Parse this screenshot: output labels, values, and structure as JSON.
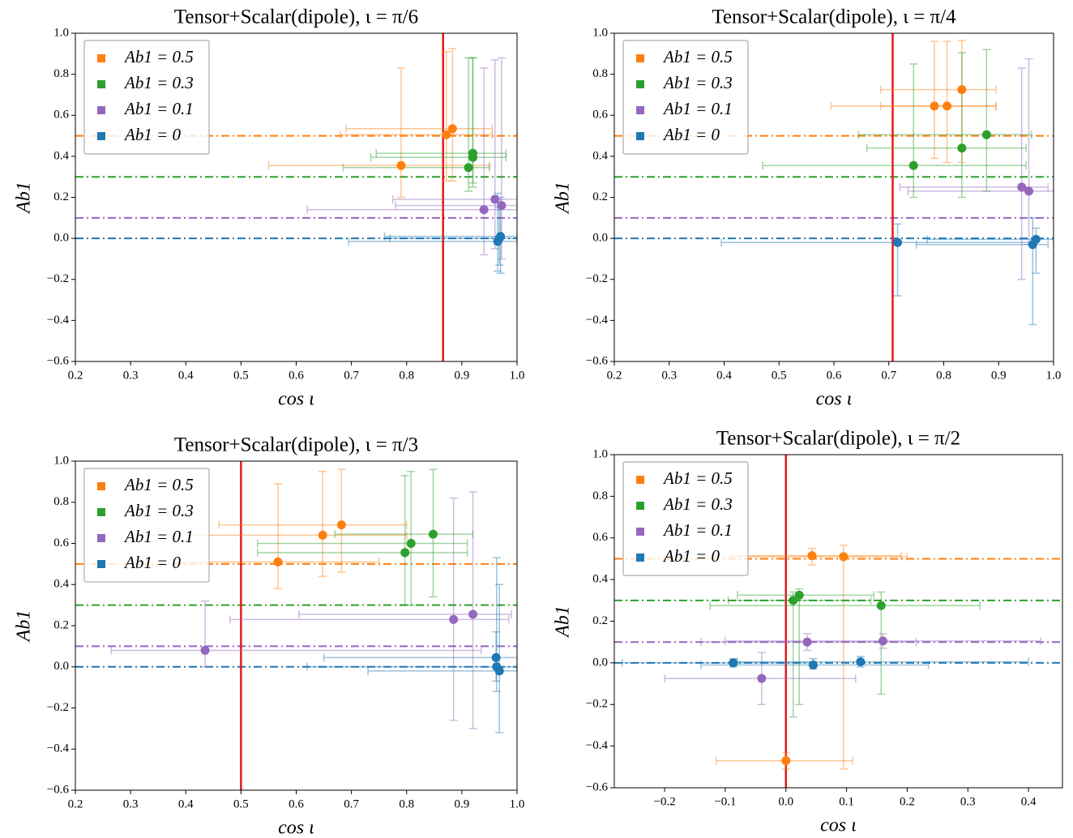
{
  "chart_data": [
    {
      "type": "errorbar",
      "title": "Tensor+Scalar(dipole), ι = π/6",
      "xlabel": "cos ι",
      "ylabel": "Ab1",
      "xlim": [
        0.2,
        1.0
      ],
      "ylim": [
        -0.6,
        1.0
      ],
      "xticks": [
        0.2,
        0.3,
        0.4,
        0.5,
        0.6,
        0.7,
        0.8,
        0.9,
        {
          "value": 1.0,
          "label": "1.0"
        }
      ],
      "yticks": [
        {
          "value": -0.6,
          "label": "−0.6"
        },
        {
          "value": -0.4,
          "label": "−0.4"
        },
        {
          "value": -0.2,
          "label": "−0.2"
        },
        {
          "value": 0,
          "label": "0.0"
        },
        0.2,
        0.4,
        0.6,
        0.8,
        {
          "value": 1.0,
          "label": "1.0"
        }
      ],
      "vline": {
        "x": 0.866,
        "color": "#e41a1c"
      },
      "legend": "upper left",
      "series": [
        {
          "name": "Ab1 = 0.5",
          "color": "#ff7f0e",
          "level": 0.5,
          "x": [
            0.79,
            0.872,
            0.883
          ],
          "values": [
            0.355,
            0.505,
            0.535
          ],
          "xmin": [
            0.55,
            0.68,
            0.69
          ],
          "xmax": [
            0.95,
            0.955,
            0.955
          ],
          "ymin": [
            0.2,
            0.28,
            0.28
          ],
          "ymax": [
            0.83,
            0.91,
            0.925
          ]
        },
        {
          "name": "Ab1 = 0.3",
          "color": "#2ca02c",
          "level": 0.3,
          "x": [
            0.912,
            0.92,
            0.92
          ],
          "values": [
            0.345,
            0.395,
            0.415
          ],
          "xmin": [
            0.685,
            0.735,
            0.745
          ],
          "xmax": [
            0.95,
            0.98,
            0.98
          ],
          "ymin": [
            0.23,
            0.27,
            0.25
          ],
          "ymax": [
            0.88,
            0.88,
            0.88
          ]
        },
        {
          "name": "Ab1 = 0.1",
          "color": "#9467bd",
          "level": 0.1,
          "x": [
            0.94,
            0.96,
            0.972
          ],
          "values": [
            0.14,
            0.19,
            0.16
          ],
          "xmin": [
            0.62,
            0.775,
            0.78
          ],
          "xmax": [
            1.0,
            1.0,
            1.0
          ],
          "ymin": [
            -0.08,
            -0.05,
            -0.1
          ],
          "ymax": [
            0.83,
            0.87,
            0.88
          ]
        },
        {
          "name": "Ab1 = 0",
          "color": "#1f77b4",
          "level": 0,
          "x": [
            0.965,
            0.97,
            0.968
          ],
          "values": [
            -0.015,
            0.01,
            0.0
          ],
          "xmin": [
            0.695,
            0.76,
            0.77
          ],
          "xmax": [
            1.0,
            1.0,
            1.0
          ],
          "ymin": [
            -0.16,
            -0.17,
            -0.13
          ],
          "ymax": [
            0.22,
            0.2,
            0.15
          ]
        }
      ]
    },
    {
      "type": "errorbar",
      "title": "Tensor+Scalar(dipole), ι = π/4",
      "xlabel": "cos ι",
      "ylabel": "Ab1",
      "xlim": [
        0.2,
        1.0
      ],
      "ylim": [
        -0.6,
        1.0
      ],
      "xticks": [
        0.2,
        0.3,
        0.4,
        0.5,
        0.6,
        0.7,
        0.8,
        0.9,
        {
          "value": 1.0,
          "label": "1.0"
        }
      ],
      "yticks": [
        {
          "value": -0.6,
          "label": "−0.6"
        },
        {
          "value": -0.4,
          "label": "−0.4"
        },
        {
          "value": -0.2,
          "label": "−0.2"
        },
        {
          "value": 0,
          "label": "0.0"
        },
        0.2,
        0.4,
        0.6,
        0.8,
        {
          "value": 1.0,
          "label": "1.0"
        }
      ],
      "vline": {
        "x": 0.707,
        "color": "#e41a1c"
      },
      "legend": "upper left",
      "series": [
        {
          "name": "Ab1 = 0.5",
          "color": "#ff7f0e",
          "level": 0.5,
          "x": [
            0.783,
            0.806,
            0.833
          ],
          "values": [
            0.645,
            0.645,
            0.725
          ],
          "xmin": [
            0.595,
            0.685,
            0.685
          ],
          "xmax": [
            0.895,
            0.895,
            0.895
          ],
          "ymin": [
            0.39,
            0.37,
            0.37
          ],
          "ymax": [
            0.96,
            0.96,
            0.965
          ]
        },
        {
          "name": "Ab1 = 0.3",
          "color": "#2ca02c",
          "level": 0.3,
          "x": [
            0.745,
            0.833,
            0.878
          ],
          "values": [
            0.355,
            0.44,
            0.505
          ],
          "xmin": [
            0.47,
            0.66,
            0.645
          ],
          "xmax": [
            0.95,
            0.95,
            0.96
          ],
          "ymin": [
            0.2,
            0.2,
            0.23
          ],
          "ymax": [
            0.85,
            0.905,
            0.92
          ]
        },
        {
          "name": "Ab1 = 0.1",
          "color": "#9467bd",
          "level": 0.1,
          "x": [
            0.942,
            0.955
          ],
          "values": [
            0.25,
            0.23
          ],
          "xmin": [
            0.72,
            0.735
          ],
          "xmax": [
            0.99,
            1.0
          ],
          "ymin": [
            -0.2,
            -0.03
          ],
          "ymax": [
            0.83,
            0.875
          ]
        },
        {
          "name": "Ab1 = 0",
          "color": "#1f77b4",
          "level": 0,
          "x": [
            0.716,
            0.962,
            0.968
          ],
          "values": [
            -0.02,
            -0.03,
            -0.005
          ],
          "xmin": [
            0.395,
            0.75,
            0.77
          ],
          "xmax": [
            0.96,
            0.99,
            1.0
          ],
          "ymin": [
            -0.28,
            -0.42,
            -0.17
          ],
          "ymax": [
            0.07,
            0.1,
            0.05
          ]
        }
      ]
    },
    {
      "type": "errorbar",
      "title": "Tensor+Scalar(dipole), ι = π/3",
      "xlabel": "cos ι",
      "ylabel": "Ab1",
      "xlim": [
        0.2,
        1.0
      ],
      "ylim": [
        -0.6,
        1.0
      ],
      "xticks": [
        0.2,
        0.3,
        0.4,
        0.5,
        0.6,
        0.7,
        0.8,
        0.9,
        {
          "value": 1.0,
          "label": "1.0"
        }
      ],
      "yticks": [
        {
          "value": -0.6,
          "label": "−0.6"
        },
        {
          "value": -0.4,
          "label": "−0.4"
        },
        {
          "value": -0.2,
          "label": "−0.2"
        },
        {
          "value": 0,
          "label": "0.0"
        },
        0.2,
        0.4,
        0.6,
        0.8,
        {
          "value": 1.0,
          "label": "1.0"
        }
      ],
      "vline": {
        "x": 0.5,
        "color": "#e41a1c"
      },
      "legend": "upper left",
      "series": [
        {
          "name": "Ab1 = 0.5",
          "color": "#ff7f0e",
          "level": 0.5,
          "x": [
            0.567,
            0.648,
            0.682
          ],
          "values": [
            0.51,
            0.64,
            0.69
          ],
          "xmin": [
            0.4,
            0.31,
            0.46
          ],
          "xmax": [
            0.75,
            0.8,
            0.8
          ],
          "ymin": [
            0.38,
            0.44,
            0.46
          ],
          "ymax": [
            0.89,
            0.95,
            0.96
          ]
        },
        {
          "name": "Ab1 = 0.3",
          "color": "#2ca02c",
          "level": 0.3,
          "x": [
            0.797,
            0.808,
            0.848
          ],
          "values": [
            0.555,
            0.6,
            0.645
          ],
          "xmin": [
            0.53,
            0.53,
            0.67
          ],
          "xmax": [
            0.91,
            0.91,
            0.92
          ],
          "ymin": [
            0.3,
            0.3,
            0.34
          ],
          "ymax": [
            0.93,
            0.95,
            0.96
          ]
        },
        {
          "name": "Ab1 = 0.1",
          "color": "#9467bd",
          "level": 0.1,
          "x": [
            0.435,
            0.885,
            0.92
          ],
          "values": [
            0.08,
            0.23,
            0.255
          ],
          "xmin": [
            0.265,
            0.48,
            0.605
          ],
          "xmax": [
            0.935,
            0.985,
            0.99
          ],
          "ymin": [
            0.0,
            -0.26,
            -0.3
          ],
          "ymax": [
            0.32,
            0.82,
            0.85
          ]
        },
        {
          "name": "Ab1 = 0",
          "color": "#1f77b4",
          "level": 0,
          "x": [
            0.962,
            0.963,
            0.968
          ],
          "values": [
            0.045,
            0.0,
            -0.02
          ],
          "xmin": [
            0.65,
            0.62,
            0.73
          ],
          "xmax": [
            1.0,
            1.0,
            1.0
          ],
          "ymin": [
            -0.07,
            -0.12,
            -0.32
          ],
          "ymax": [
            0.17,
            0.53,
            0.4
          ]
        }
      ]
    },
    {
      "type": "errorbar",
      "title": "Tensor+Scalar(dipole), ι = π/2",
      "xlabel": "cos ι",
      "ylabel": "Ab1",
      "xlim": [
        -0.283,
        0.456
      ],
      "ylim": [
        -0.6,
        1.0
      ],
      "xticks": [
        {
          "value": -0.2,
          "label": "−0.2"
        },
        {
          "value": -0.1,
          "label": "−0.1"
        },
        {
          "value": 0,
          "label": "0.0"
        },
        0.1,
        0.2,
        0.3,
        0.4
      ],
      "yticks": [
        {
          "value": -0.6,
          "label": "−0.6"
        },
        {
          "value": -0.4,
          "label": "−0.4"
        },
        {
          "value": -0.2,
          "label": "−0.2"
        },
        {
          "value": 0,
          "label": "0.0"
        },
        0.2,
        0.4,
        0.6,
        0.8,
        {
          "value": 1.0,
          "label": "1.0"
        }
      ],
      "vline": {
        "x": 0,
        "color": "#e41a1c"
      },
      "legend": "upper left",
      "series": [
        {
          "name": "Ab1 = 0.5",
          "color": "#ff7f0e",
          "level": 0.5,
          "x": [
            0.0,
            0.043,
            0.095
          ],
          "values": [
            -0.47,
            0.515,
            0.51
          ],
          "xmin": [
            -0.115,
            -0.12,
            -0.09
          ],
          "xmax": [
            0.11,
            0.19,
            0.2
          ],
          "ymin": [
            -0.51,
            0.47,
            -0.51
          ],
          "ymax": [
            -0.43,
            0.55,
            0.565
          ]
        },
        {
          "name": "Ab1 = 0.3",
          "color": "#2ca02c",
          "level": 0.3,
          "x": [
            0.012,
            0.022,
            0.157
          ],
          "values": [
            0.3,
            0.325,
            0.275
          ],
          "xmin": [
            -0.095,
            -0.08,
            -0.125
          ],
          "xmax": [
            0.14,
            0.145,
            0.32
          ],
          "ymin": [
            -0.26,
            -0.2,
            -0.15
          ],
          "ymax": [
            0.34,
            0.355,
            0.34
          ]
        },
        {
          "name": "Ab1 = 0.1",
          "color": "#9467bd",
          "level": 0.1,
          "x": [
            -0.04,
            0.035,
            0.16
          ],
          "values": [
            -0.075,
            0.1,
            0.105
          ],
          "xmin": [
            -0.2,
            -0.14,
            -0.1
          ],
          "xmax": [
            0.115,
            0.215,
            0.42
          ],
          "ymin": [
            -0.2,
            0.06,
            0.07
          ],
          "ymax": [
            0.05,
            0.14,
            0.14
          ]
        },
        {
          "name": "Ab1 = 0",
          "color": "#1f77b4",
          "level": 0,
          "x": [
            -0.087,
            0.045,
            0.123
          ],
          "values": [
            0.0,
            -0.01,
            0.005
          ],
          "xmin": [
            -0.27,
            -0.14,
            -0.08
          ],
          "xmax": [
            0.045,
            0.235,
            0.4
          ],
          "ymin": [
            -0.02,
            -0.03,
            -0.02
          ],
          "ymax": [
            0.02,
            0.02,
            0.03
          ]
        }
      ]
    }
  ]
}
